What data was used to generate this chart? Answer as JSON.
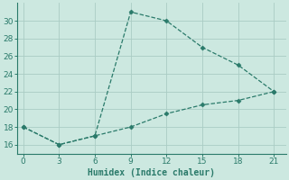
{
  "line1_x": [
    0,
    3,
    6,
    9,
    12,
    15,
    18,
    21
  ],
  "line1_y": [
    18,
    16,
    17,
    31,
    30,
    27,
    25,
    22
  ],
  "line2_x": [
    0,
    3,
    6,
    9,
    12,
    15,
    18,
    21
  ],
  "line2_y": [
    18,
    16,
    17,
    18,
    19.5,
    20.5,
    21,
    22
  ],
  "color": "#2a7a6a",
  "bg_color": "#cce8e0",
  "grid_color": "#aaccC4",
  "xlabel": "Humidex (Indice chaleur)",
  "xlim": [
    -0.5,
    22
  ],
  "ylim": [
    15.0,
    32.0
  ],
  "xticks": [
    0,
    3,
    6,
    9,
    12,
    15,
    18,
    21
  ],
  "yticks": [
    16,
    18,
    20,
    22,
    24,
    26,
    28,
    30
  ]
}
